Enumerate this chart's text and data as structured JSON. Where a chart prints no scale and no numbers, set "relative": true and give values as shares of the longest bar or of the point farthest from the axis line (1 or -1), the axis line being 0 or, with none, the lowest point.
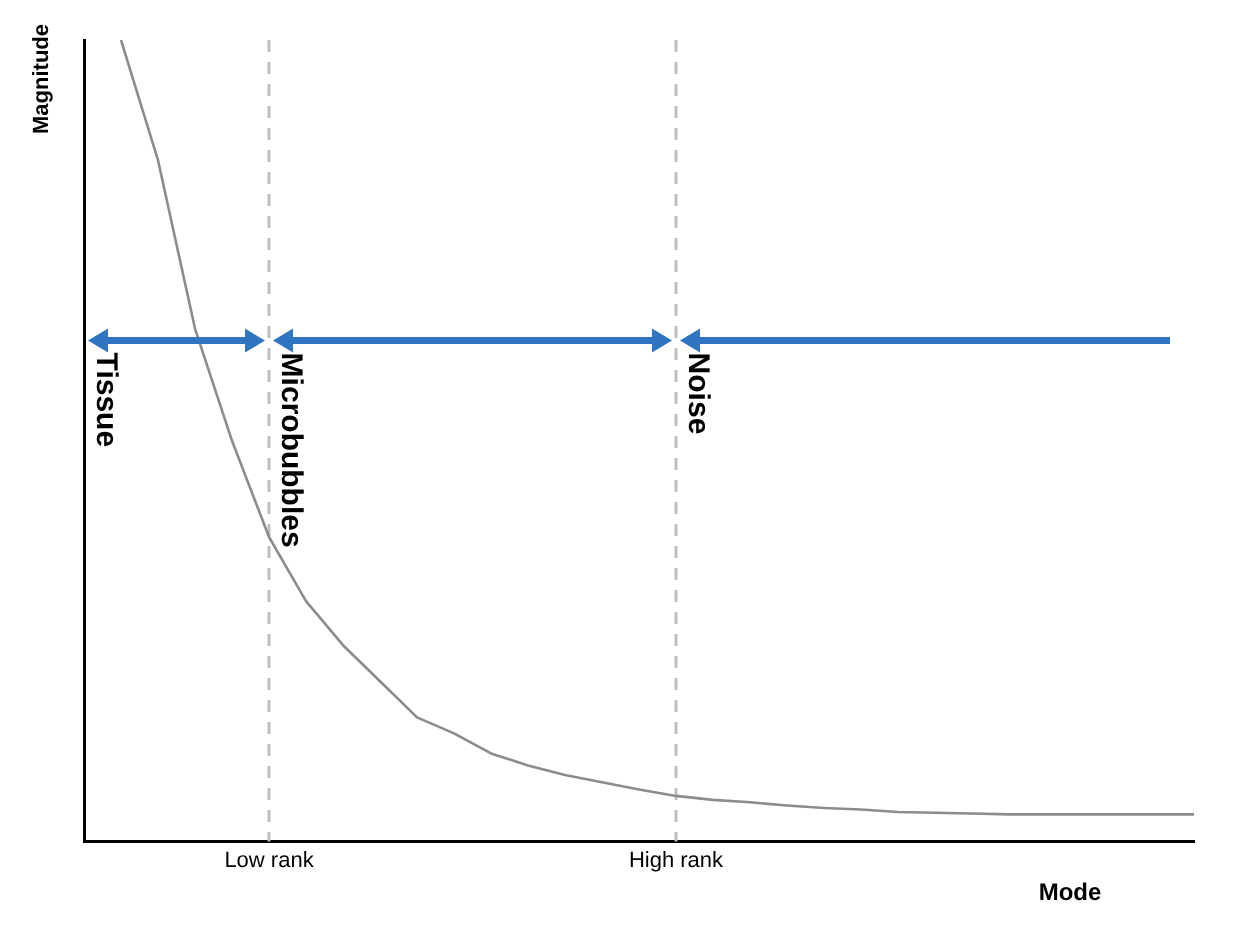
{
  "chart_data": {
    "type": "line",
    "relative": true,
    "xlabel": "Mode",
    "ylabel": "Magnitude",
    "categories": [
      null,
      null,
      null,
      null,
      null,
      "Low rank",
      null,
      null,
      null,
      null,
      null,
      null,
      null,
      null,
      null,
      null,
      "High rank",
      null,
      null,
      null,
      null,
      null,
      null,
      null,
      null,
      null,
      null,
      null,
      null,
      null,
      null
    ],
    "series": [
      {
        "color": "#8c8c8c",
        "values": [
          null,
          1,
          0.85,
          0.64,
          0.5,
          0.38,
          0.3,
          0.245,
          0.2,
          0.155,
          0.135,
          0.11,
          0.095,
          0.083,
          0.074,
          0.065,
          0.057,
          0.052,
          0.049,
          0.045,
          0.042,
          0.04,
          0.037,
          0.036,
          0.035,
          0.034,
          0.034,
          0.034,
          0.034,
          0.034,
          0.034
        ]
      }
    ],
    "ref_lines": [
      {
        "axis": "x",
        "value": "Low rank",
        "color": "#bfbfbf",
        "line_style": "dashed"
      },
      {
        "axis": "x",
        "value": "High rank",
        "color": "#bfbfbf",
        "line_style": "dashed"
      }
    ],
    "annotations": [
      "Tissue",
      "Microbubbles",
      "Noise"
    ],
    "grid": false,
    "legend": false,
    "marker": "none",
    "line_style": "solid"
  }
}
